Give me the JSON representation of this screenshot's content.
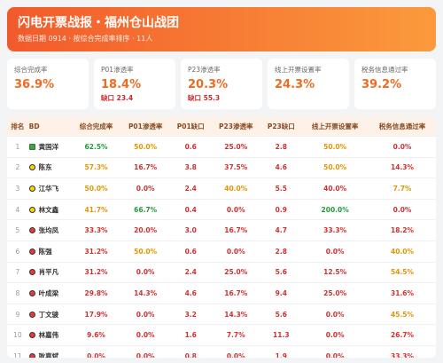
{
  "header": {
    "title": "闪电开票战报・福州仓山战团",
    "subtitle": "数据日期 0914 · 按综合完成率排序 · 11人"
  },
  "kpis": [
    {
      "label": "综合完成率",
      "value": "36.9%"
    },
    {
      "label": "P01渗透率",
      "value": "18.4%",
      "note": "缺口 23.4"
    },
    {
      "label": "P23渗透率",
      "value": "20.3%",
      "note": "缺口 55.3"
    },
    {
      "label": "线上开票设置率",
      "value": "24.3%"
    },
    {
      "label": "税务信息通过率",
      "value": "39.2%"
    }
  ],
  "table": {
    "columns": [
      "排名",
      "BD",
      "综合完成率",
      "P01渗透率",
      "P01缺口",
      "P23渗透率",
      "P23缺口",
      "线上开票设置率",
      "税务信息通过率"
    ],
    "rows": [
      [
        "1",
        "黄国洋",
        "62.5%",
        "50.0%",
        "0.6",
        "25.0%",
        "2.8",
        "50.0%",
        "0.0%"
      ],
      [
        "2",
        "陈东",
        "57.3%",
        "16.7%",
        "3.8",
        "37.5%",
        "4.6",
        "50.0%",
        "14.3%"
      ],
      [
        "3",
        "江华飞",
        "50.0%",
        "0.0%",
        "2.4",
        "40.0%",
        "5.5",
        "40.0%",
        "7.7%"
      ],
      [
        "4",
        "林文鑫",
        "41.7%",
        "66.7%",
        "0.4",
        "0.0%",
        "0.9",
        "200.0%",
        "0.0%"
      ],
      [
        "5",
        "张均凤",
        "33.3%",
        "20.0%",
        "3.0",
        "16.7%",
        "4.7",
        "33.3%",
        "18.2%"
      ],
      [
        "6",
        "陈强",
        "31.2%",
        "50.0%",
        "0.6",
        "0.0%",
        "2.8",
        "0.0%",
        "40.0%"
      ],
      [
        "7",
        "肖平凡",
        "31.2%",
        "0.0%",
        "2.4",
        "25.0%",
        "5.6",
        "12.5%",
        "54.5%"
      ],
      [
        "8",
        "叶成梁",
        "29.8%",
        "14.3%",
        "4.6",
        "16.7%",
        "9.4",
        "25.0%",
        "31.6%"
      ],
      [
        "9",
        "丁文骏",
        "17.9%",
        "0.0%",
        "3.2",
        "14.3%",
        "5.6",
        "0.0%",
        "45.5%"
      ],
      [
        "10",
        "林嘉伟",
        "9.6%",
        "0.0%",
        "1.6",
        "7.7%",
        "11.3",
        "0.0%",
        "26.7%"
      ],
      [
        "11",
        "耿嘉斌",
        "0.0%",
        "0.0%",
        "0.8",
        "0.0%",
        "1.9",
        "0.0%",
        "33.3%"
      ]
    ]
  }
}
